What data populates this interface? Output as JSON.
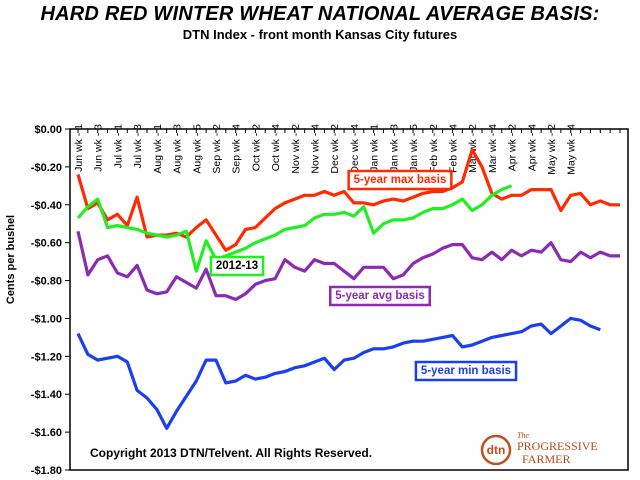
{
  "title": "HARD RED WINTER WHEAT NATIONAL AVERAGE BASIS:",
  "subtitle": "DTN Index - front month Kansas City futures",
  "copyright": "Copyright 2013 DTN/Telvent. All Rights Reserved.",
  "logo": {
    "dtn": "dtn",
    "brand_top": "The",
    "brand_line1": "PROGRESSIVE",
    "brand_line2": "FARMER"
  },
  "colors": {
    "max": "#ff2a00",
    "current": "#22ee22",
    "avg": "#8a2bb5",
    "min": "#1a3ff0",
    "logo": "#c0501f"
  },
  "chart_data": {
    "type": "line",
    "title": "HARD RED WINTER WHEAT NATIONAL AVERAGE BASIS:",
    "subtitle": "DTN Index - front month Kansas City futures",
    "xlabel": "",
    "ylabel": "Cents per bushel",
    "ylim": [
      -1.8,
      0.0
    ],
    "yticks": [
      "$0.00",
      "-$0.20",
      "-$0.40",
      "-$0.60",
      "-$0.80",
      "-$1.00",
      "-$1.20",
      "-$1.40",
      "-$1.60",
      "-$1.80"
    ],
    "x_tick_labels": [
      "Jun wk - 1",
      "Jun wk - 3",
      "Jul wk - 1",
      "Jul wk - 3",
      "Aug wk - 1",
      "Aug wk - 3",
      "Aug wk - 5",
      "Sep wk - 2",
      "Sep wk - 4",
      "Oct wk - 2",
      "Oct wk - 4",
      "Nov wk - 2",
      "Nov wk - 4",
      "Dec wk - 2",
      "Dec wk - 4",
      "Jan wk - 1",
      "Jan wk - 3",
      "Jan wk - 5",
      "Feb wk - 2",
      "Feb wk - 4",
      "Mar wk - 2",
      "Mar wk - 4",
      "Apr wk - 2",
      "Apr wk - 4",
      "May wk - 2",
      "May wk - 4"
    ],
    "grid": false,
    "series": [
      {
        "name": "5-year max basis",
        "color": "#ff2a00",
        "values": [
          -0.24,
          -0.42,
          -0.39,
          -0.48,
          -0.45,
          -0.51,
          -0.36,
          -0.57,
          -0.56,
          -0.56,
          -0.55,
          -0.57,
          -0.52,
          -0.48,
          -0.56,
          -0.64,
          -0.61,
          -0.53,
          -0.52,
          -0.47,
          -0.42,
          -0.39,
          -0.37,
          -0.35,
          -0.35,
          -0.33,
          -0.35,
          -0.33,
          -0.39,
          -0.39,
          -0.4,
          -0.38,
          -0.37,
          -0.38,
          -0.36,
          -0.34,
          -0.33,
          -0.33,
          -0.31,
          -0.28,
          -0.11,
          -0.2,
          -0.34,
          -0.37,
          -0.35,
          -0.35,
          -0.32,
          -0.32,
          -0.32,
          -0.43,
          -0.35,
          -0.34,
          -0.4,
          -0.38,
          -0.4,
          -0.4
        ]
      },
      {
        "name": "2012-13",
        "color": "#22ee22",
        "values": [
          -0.47,
          -0.41,
          -0.37,
          -0.52,
          -0.51,
          -0.52,
          -0.53,
          -0.55,
          -0.56,
          -0.57,
          -0.56,
          -0.54,
          -0.75,
          -0.59,
          -0.69,
          -0.67,
          -0.65,
          -0.63,
          -0.6,
          -0.58,
          -0.56,
          -0.53,
          -0.52,
          -0.51,
          -0.47,
          -0.45,
          -0.45,
          -0.44,
          -0.46,
          -0.41,
          -0.55,
          -0.5,
          -0.48,
          -0.48,
          -0.47,
          -0.44,
          -0.42,
          -0.42,
          -0.4,
          -0.37,
          -0.43,
          -0.4,
          -0.35,
          -0.32,
          -0.3
        ]
      },
      {
        "name": "5-year avg basis",
        "color": "#8a2bb5",
        "values": [
          -0.54,
          -0.77,
          -0.69,
          -0.67,
          -0.76,
          -0.78,
          -0.72,
          -0.85,
          -0.87,
          -0.86,
          -0.78,
          -0.81,
          -0.84,
          -0.74,
          -0.88,
          -0.88,
          -0.9,
          -0.87,
          -0.82,
          -0.8,
          -0.79,
          -0.69,
          -0.73,
          -0.75,
          -0.69,
          -0.71,
          -0.71,
          -0.75,
          -0.79,
          -0.73,
          -0.73,
          -0.73,
          -0.79,
          -0.77,
          -0.71,
          -0.68,
          -0.66,
          -0.63,
          -0.61,
          -0.61,
          -0.68,
          -0.69,
          -0.65,
          -0.69,
          -0.64,
          -0.67,
          -0.64,
          -0.65,
          -0.6,
          -0.69,
          -0.7,
          -0.65,
          -0.68,
          -0.65,
          -0.67,
          -0.67
        ]
      },
      {
        "name": "5-year min basis",
        "color": "#1a3ff0",
        "values": [
          -1.08,
          -1.19,
          -1.22,
          -1.21,
          -1.2,
          -1.23,
          -1.38,
          -1.42,
          -1.48,
          -1.58,
          -1.49,
          -1.41,
          -1.33,
          -1.22,
          -1.22,
          -1.34,
          -1.33,
          -1.3,
          -1.32,
          -1.31,
          -1.29,
          -1.28,
          -1.26,
          -1.25,
          -1.23,
          -1.21,
          -1.27,
          -1.22,
          -1.21,
          -1.18,
          -1.16,
          -1.16,
          -1.15,
          -1.13,
          -1.12,
          -1.12,
          -1.11,
          -1.1,
          -1.09,
          -1.15,
          -1.14,
          -1.12,
          -1.1,
          -1.09,
          -1.08,
          -1.07,
          -1.04,
          -1.03,
          -1.08,
          -1.04,
          -1.0,
          -1.01,
          -1.04,
          -1.06
        ]
      }
    ],
    "annotations": [
      {
        "text": "5-year max basis",
        "series": "5-year max basis"
      },
      {
        "text": "2012-13",
        "series": "2012-13"
      },
      {
        "text": "5-year avg basis",
        "series": "5-year avg basis"
      },
      {
        "text": "5-year min basis",
        "series": "5-year min basis"
      }
    ]
  }
}
